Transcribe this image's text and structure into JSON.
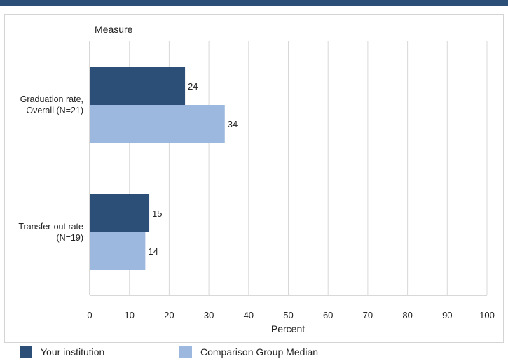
{
  "chart_data": {
    "type": "bar",
    "orientation": "horizontal",
    "title": "",
    "ylabel": "Measure",
    "xlabel": "Percent",
    "categories": [
      [
        "Graduation rate,",
        "Overall (N=21)"
      ],
      [
        "Transfer-out rate",
        "(N=19)"
      ]
    ],
    "series": [
      {
        "name": "Your institution",
        "values": [
          24,
          15
        ],
        "color": "#2c4f78"
      },
      {
        "name": "Comparison Group Median",
        "values": [
          34,
          14
        ],
        "color": "#9db8de"
      }
    ],
    "xlim": [
      0,
      100
    ],
    "xticks": [
      0,
      10,
      20,
      30,
      40,
      50,
      60,
      70,
      80,
      90,
      100
    ],
    "grid": true,
    "legend_position": "bottom"
  }
}
